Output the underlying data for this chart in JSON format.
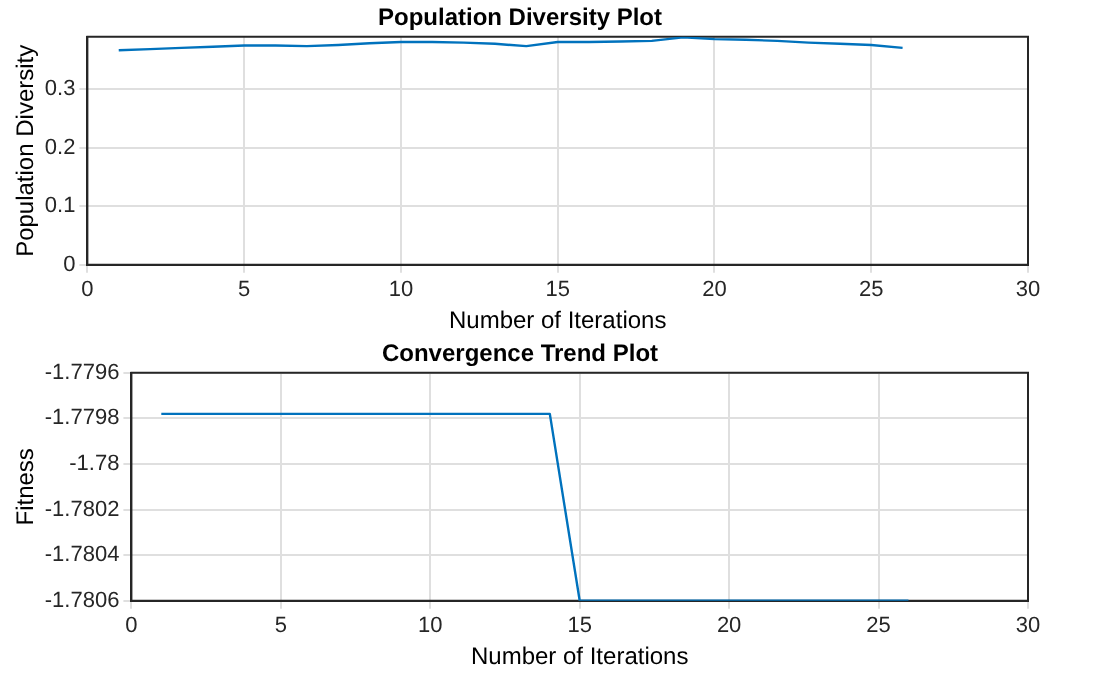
{
  "chart_data": [
    {
      "type": "line",
      "title": "Population Diversity Plot",
      "xlabel": "Number of Iterations",
      "ylabel": "Population Diversity",
      "x": [
        1,
        2,
        3,
        4,
        5,
        6,
        7,
        8,
        9,
        10,
        11,
        12,
        13,
        14,
        15,
        16,
        17,
        18,
        19,
        20,
        21,
        22,
        23,
        24,
        25,
        26
      ],
      "series": [
        {
          "color": "#0072bd",
          "values": [
            0.367,
            0.369,
            0.371,
            0.373,
            0.375,
            0.375,
            0.374,
            0.376,
            0.379,
            0.381,
            0.381,
            0.38,
            0.378,
            0.374,
            0.381,
            0.381,
            0.382,
            0.383,
            0.389,
            0.386,
            0.385,
            0.383,
            0.38,
            0.378,
            0.376,
            0.371
          ]
        }
      ],
      "xlim": [
        0,
        30
      ],
      "xticks": [
        0,
        5,
        10,
        15,
        20,
        25,
        30
      ],
      "ylim": [
        0,
        0.39
      ],
      "yticks": [
        0,
        0.1,
        0.2,
        0.3
      ],
      "grid": true,
      "legend": false,
      "marker": "none",
      "line_style": "solid"
    },
    {
      "type": "line",
      "title": "Convergence Trend Plot",
      "xlabel": "Number of Iterations",
      "ylabel": "Fitness",
      "x": [
        1,
        2,
        3,
        4,
        5,
        6,
        7,
        8,
        9,
        10,
        11,
        12,
        13,
        14,
        15,
        16,
        17,
        18,
        19,
        20,
        21,
        22,
        23,
        24,
        25,
        26
      ],
      "series": [
        {
          "color": "#0072bd",
          "values": [
            -1.77978,
            -1.77978,
            -1.77978,
            -1.77978,
            -1.77978,
            -1.77978,
            -1.77978,
            -1.77978,
            -1.77978,
            -1.77978,
            -1.77978,
            -1.77978,
            -1.77978,
            -1.77978,
            -1.7806,
            -1.7806,
            -1.7806,
            -1.7806,
            -1.7806,
            -1.7806,
            -1.7806,
            -1.7806,
            -1.7806,
            -1.7806,
            -1.7806,
            -1.7806
          ]
        }
      ],
      "xlim": [
        0,
        30
      ],
      "xticks": [
        0,
        5,
        10,
        15,
        20,
        25,
        30
      ],
      "ylim": [
        -1.7806,
        -1.7796
      ],
      "yticks": [
        -1.7806,
        -1.7804,
        -1.7802,
        -1.78,
        -1.7798,
        -1.7796
      ],
      "grid": true,
      "legend": false,
      "marker": "none",
      "line_style": "solid"
    }
  ]
}
